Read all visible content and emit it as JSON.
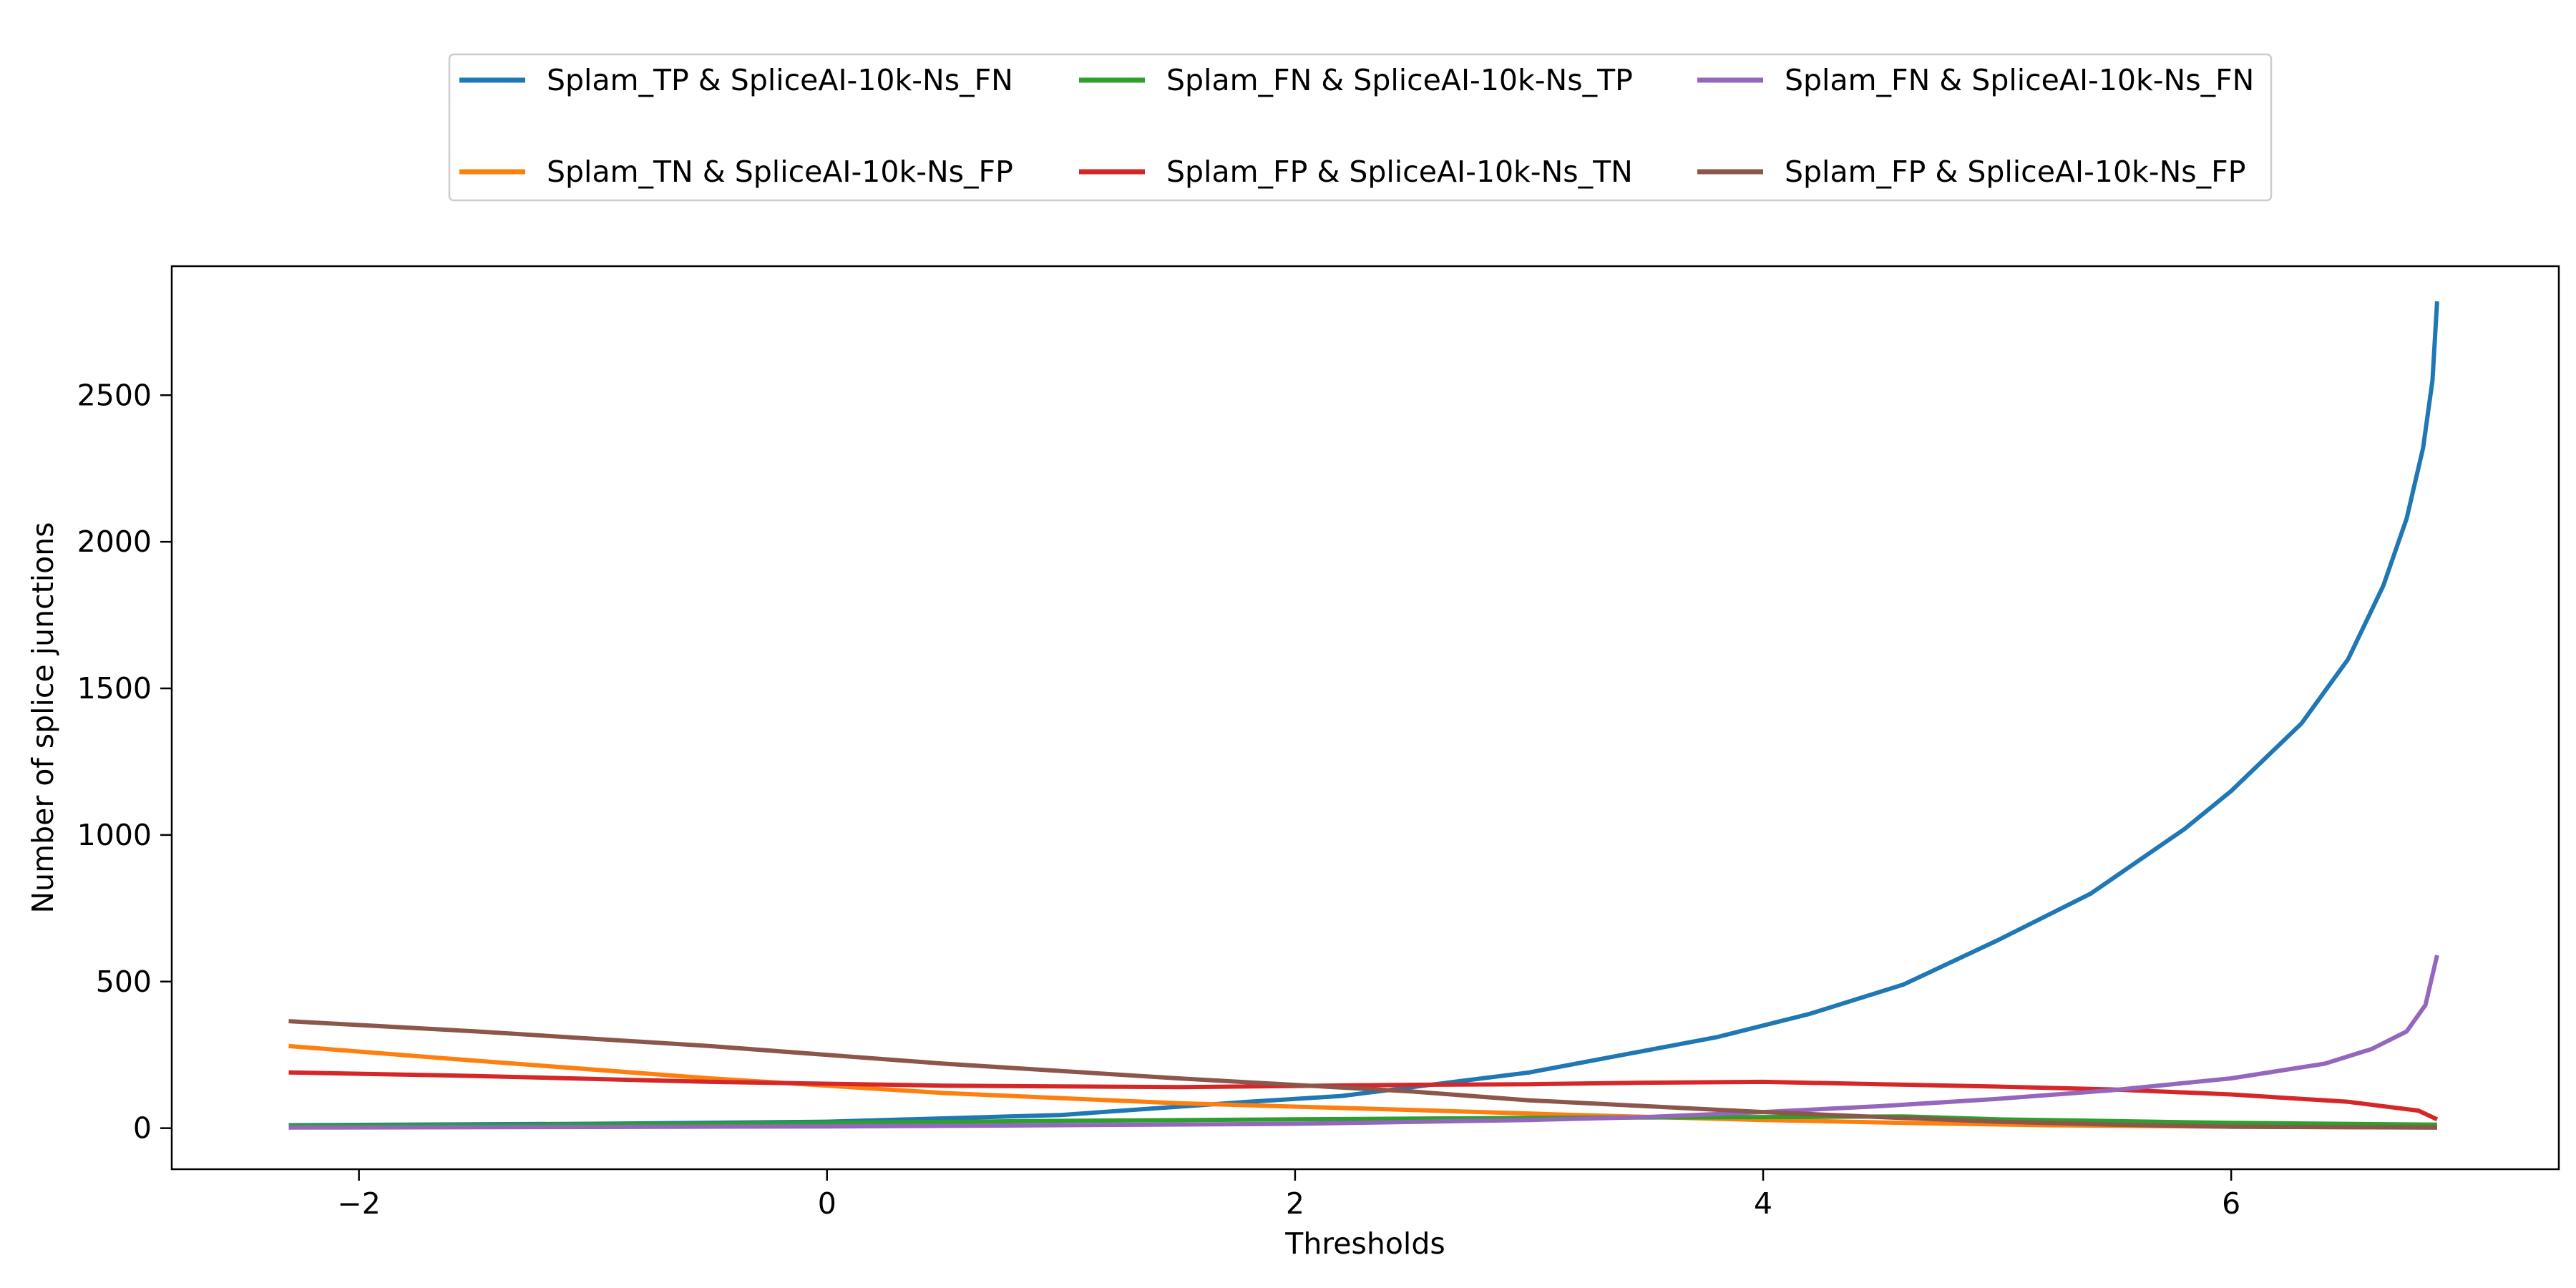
{
  "chart_data": {
    "type": "line",
    "title": "",
    "xlabel": "Thresholds",
    "ylabel": "Number of splice junctions",
    "xlim": [
      -2.8,
      7.4
    ],
    "ylim": [
      -140,
      2940
    ],
    "x_ticks": [
      -2,
      0,
      2,
      4,
      6
    ],
    "x_tick_labels": [
      "−2",
      "0",
      "2",
      "4",
      "6"
    ],
    "y_ticks": [
      0,
      500,
      1000,
      1500,
      2000,
      2500
    ],
    "y_tick_labels": [
      "0",
      "500",
      "1000",
      "1500",
      "2000",
      "2500"
    ],
    "grid": false,
    "legend_position": "top-center",
    "series": [
      {
        "name": "Splam_TP & SpliceAI-10k-Ns_FN",
        "color": "#1f77b4",
        "points": [
          [
            -2.3,
            10
          ],
          [
            -1,
            15
          ],
          [
            0,
            22
          ],
          [
            1,
            45
          ],
          [
            1.8,
            90
          ],
          [
            2.2,
            110
          ],
          [
            2.6,
            150
          ],
          [
            3,
            190
          ],
          [
            3.4,
            250
          ],
          [
            3.8,
            310
          ],
          [
            4.2,
            390
          ],
          [
            4.6,
            490
          ],
          [
            5,
            640
          ],
          [
            5.4,
            800
          ],
          [
            5.8,
            1020
          ],
          [
            6,
            1150
          ],
          [
            6.3,
            1380
          ],
          [
            6.5,
            1600
          ],
          [
            6.65,
            1850
          ],
          [
            6.75,
            2080
          ],
          [
            6.82,
            2320
          ],
          [
            6.86,
            2550
          ],
          [
            6.88,
            2820
          ]
        ]
      },
      {
        "name": "Splam_TN & SpliceAI-10k-Ns_FP",
        "color": "#ff7f0e",
        "points": [
          [
            -2.3,
            280
          ],
          [
            -1.5,
            230
          ],
          [
            -0.5,
            170
          ],
          [
            0.5,
            120
          ],
          [
            1.5,
            85
          ],
          [
            2.5,
            62
          ],
          [
            3.2,
            45
          ],
          [
            4,
            28
          ],
          [
            4.6,
            18
          ],
          [
            5.2,
            10
          ],
          [
            6,
            5
          ],
          [
            6.88,
            2
          ]
        ]
      },
      {
        "name": "Splam_FN & SpliceAI-10k-Ns_TP",
        "color": "#2ca02c",
        "points": [
          [
            -2.3,
            8
          ],
          [
            -1,
            12
          ],
          [
            0,
            18
          ],
          [
            1,
            25
          ],
          [
            2,
            30
          ],
          [
            3,
            35
          ],
          [
            4,
            38
          ],
          [
            4.6,
            40
          ],
          [
            5,
            30
          ],
          [
            6,
            18
          ],
          [
            6.88,
            12
          ]
        ]
      },
      {
        "name": "Splam_FP & SpliceAI-10k-Ns_TN",
        "color": "#d62728",
        "points": [
          [
            -2.3,
            190
          ],
          [
            -1.5,
            178
          ],
          [
            -0.5,
            158
          ],
          [
            0.5,
            145
          ],
          [
            1.5,
            140
          ],
          [
            2.5,
            148
          ],
          [
            3,
            150
          ],
          [
            3.5,
            155
          ],
          [
            4,
            158
          ],
          [
            4.5,
            150
          ],
          [
            5,
            142
          ],
          [
            5.5,
            132
          ],
          [
            6,
            115
          ],
          [
            6.5,
            90
          ],
          [
            6.8,
            60
          ],
          [
            6.88,
            30
          ]
        ]
      },
      {
        "name": "Splam_FN & SpliceAI-10k-Ns_FN",
        "color": "#9467bd",
        "points": [
          [
            -2.3,
            2
          ],
          [
            -1,
            4
          ],
          [
            0,
            6
          ],
          [
            1,
            10
          ],
          [
            2,
            15
          ],
          [
            3,
            28
          ],
          [
            3.5,
            38
          ],
          [
            4,
            55
          ],
          [
            4.5,
            75
          ],
          [
            5,
            100
          ],
          [
            5.5,
            130
          ],
          [
            6,
            170
          ],
          [
            6.4,
            220
          ],
          [
            6.6,
            270
          ],
          [
            6.75,
            330
          ],
          [
            6.83,
            420
          ],
          [
            6.88,
            590
          ]
        ]
      },
      {
        "name": "Splam_FP & SpliceAI-10k-Ns_FP",
        "color": "#8c564b",
        "points": [
          [
            -2.3,
            365
          ],
          [
            -1.5,
            330
          ],
          [
            -0.5,
            280
          ],
          [
            0.5,
            220
          ],
          [
            1.5,
            170
          ],
          [
            2.5,
            125
          ],
          [
            3,
            95
          ],
          [
            3.5,
            75
          ],
          [
            4,
            55
          ],
          [
            4.5,
            38
          ],
          [
            5,
            22
          ],
          [
            5.5,
            12
          ],
          [
            6,
            5
          ],
          [
            6.88,
            2
          ]
        ]
      }
    ]
  }
}
